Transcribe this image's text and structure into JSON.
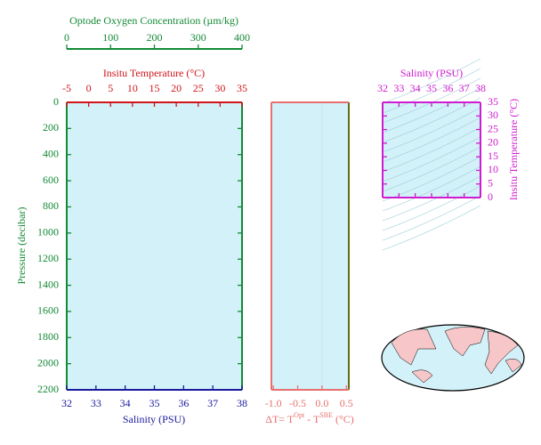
{
  "chart_data": [
    {
      "type": "line",
      "ylabel": "Pressure (decibar)",
      "ylim": [
        0,
        2200
      ],
      "yticks": [
        0,
        200,
        400,
        600,
        800,
        1000,
        1200,
        1400,
        1600,
        1800,
        2000,
        2200
      ],
      "xlabel": "Salinity (PSU)",
      "xlim": [
        32,
        38
      ],
      "xticks": [
        32,
        33,
        34,
        35,
        36,
        37,
        38
      ],
      "x2label": "Insitu Temperature (°C)",
      "x2lim": [
        -5,
        35
      ],
      "x2ticks": [
        -5,
        0,
        5,
        10,
        15,
        20,
        25,
        30,
        35
      ],
      "x3label": "Optode Oxygen Concentration (µm/kg)",
      "x3lim": [
        0,
        400
      ],
      "x3ticks": [
        0,
        100,
        200,
        300,
        400
      ]
    },
    {
      "type": "line",
      "xlabel": [
        "ΔT= T",
        "Opt",
        " - T",
        "SBE",
        " (°C)"
      ],
      "xlim": [
        -1.04,
        0.55
      ],
      "xticks": [
        {
          "value": -1,
          "label": "-1.0"
        },
        -0.5,
        {
          "value": 0,
          "label": "0.0"
        },
        0.5
      ],
      "ylim": [
        0,
        2200
      ]
    },
    {
      "type": "line",
      "title": "Salinity (PSU)",
      "xlim": [
        32,
        38
      ],
      "xticks": [
        32,
        33,
        34,
        35,
        36,
        37,
        38
      ],
      "ylabel": "Insitu Temperature (°C)",
      "ylim": [
        0,
        35
      ],
      "yticks": [
        0,
        5,
        10,
        15,
        20,
        25,
        30,
        35
      ]
    }
  ]
}
